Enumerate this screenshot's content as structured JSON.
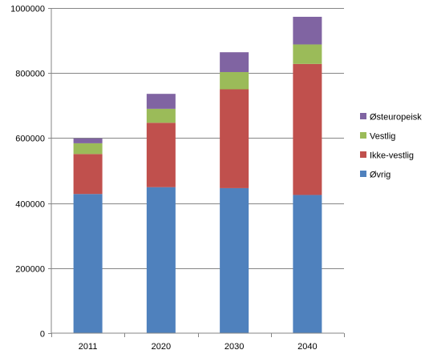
{
  "chart_data": {
    "type": "bar",
    "stacked": true,
    "categories": [
      "2011",
      "2020",
      "2030",
      "2040"
    ],
    "series": [
      {
        "name": "Øvrig",
        "values": [
          428000,
          449000,
          446000,
          425000
        ],
        "color": "#4F81BD"
      },
      {
        "name": "Ikke-vestlig",
        "values": [
          123000,
          198000,
          304000,
          403000
        ],
        "color": "#C0504D"
      },
      {
        "name": "Vestlig",
        "values": [
          33000,
          43000,
          53000,
          60000
        ],
        "color": "#9BBB59"
      },
      {
        "name": "Østeuropeisk",
        "values": [
          15000,
          46000,
          61000,
          85000
        ],
        "color": "#8064A2"
      }
    ],
    "yticks": [
      "0",
      "200000",
      "400000",
      "600000",
      "800000",
      "1000000"
    ],
    "ylim": [
      0,
      1000000
    ],
    "grid": true,
    "legend_position": "right",
    "legend_order": [
      "Østeuropeisk",
      "Vestlig",
      "Ikke-vestlig",
      "Øvrig"
    ]
  }
}
